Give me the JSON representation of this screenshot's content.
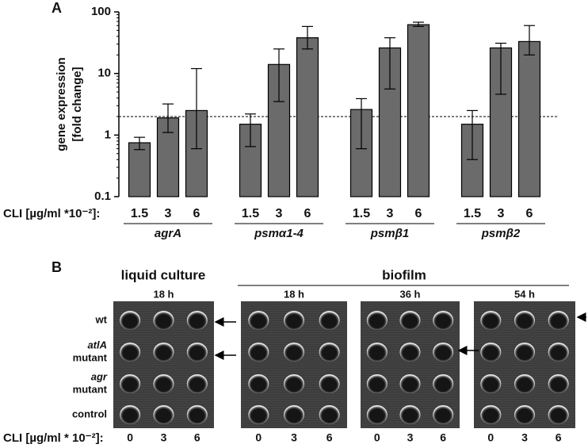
{
  "chart_data": {
    "type": "bar",
    "panel_label": "A",
    "ylabel": [
      "gene expression",
      "[fold change]"
    ],
    "xlabel": "CLI [µg/ml *10⁻²]:",
    "categories": [
      "1.5",
      "3",
      "6",
      "1.5",
      "3",
      "6",
      "1.5",
      "3",
      "6",
      "1.5",
      "3",
      "6"
    ],
    "groups": [
      "agrA",
      "psmα1-4",
      "psmβ1",
      "psmβ2"
    ],
    "series": [
      {
        "color": "#6b6b6b",
        "values": [
          0.75,
          1.9,
          2.5,
          1.5,
          14,
          38,
          2.6,
          26,
          62,
          1.5,
          26,
          33
        ],
        "lower": [
          0.58,
          1.1,
          0.6,
          0.65,
          3.5,
          25,
          0.6,
          5.6,
          58,
          0.4,
          4.6,
          20
        ],
        "upper": [
          0.92,
          3.2,
          12,
          2.2,
          25,
          58,
          3.9,
          38,
          68,
          2.5,
          31,
          60
        ]
      }
    ],
    "ylim": [
      0.1,
      100
    ],
    "yticks": [
      0.1,
      1,
      10,
      100
    ],
    "log_y": true,
    "reference_line": 2
  },
  "panel_b": {
    "label": "B",
    "headers": [
      "liquid culture",
      "biofilm"
    ],
    "times": [
      "18 h",
      "18 h",
      "36 h",
      "54 h"
    ],
    "rows": [
      [
        "wt"
      ],
      [
        "atlA",
        "mutant"
      ],
      [
        "agr",
        "mutant"
      ],
      [
        "control"
      ]
    ],
    "x_label": "CLI [µg/ml * 10⁻²]:",
    "doses": [
      "0",
      "3",
      "6"
    ]
  }
}
